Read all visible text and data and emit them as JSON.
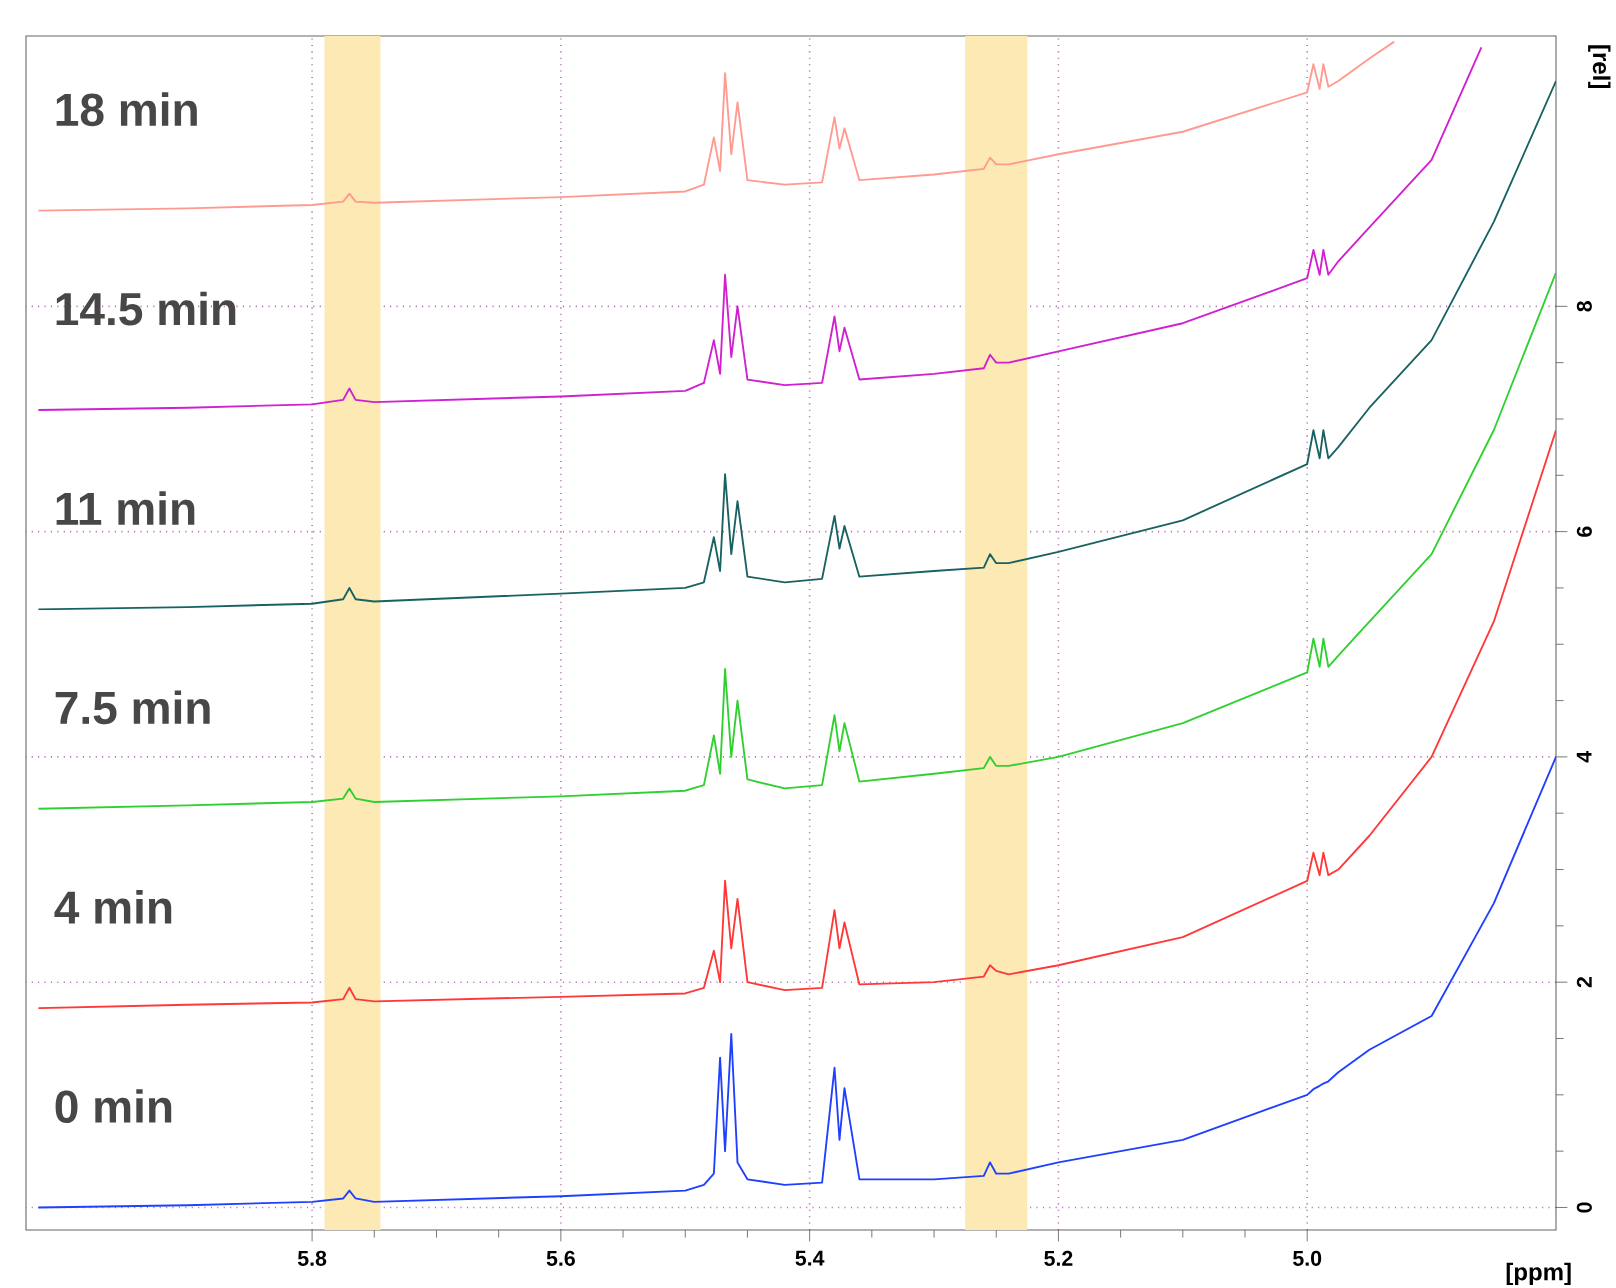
{
  "chart_data": {
    "type": "line",
    "xlabel": "[ppm]",
    "ylabel": "[rel]",
    "xlim": [
      6.03,
      4.8
    ],
    "ylim": [
      -0.2,
      10.4
    ],
    "xticks": [
      5.8,
      5.6,
      5.4,
      5.2,
      {
        "value": 5.0,
        "label": "5.0"
      }
    ],
    "yticks": [
      0,
      2,
      4,
      6,
      8
    ],
    "grid": true,
    "marker": "none",
    "line_style": "solid",
    "bands": [
      {
        "axis": "x",
        "from": 5.79,
        "to": 5.745,
        "color": "#fde9b3"
      },
      {
        "axis": "x",
        "from": 5.275,
        "to": 5.225,
        "color": "#fde9b3"
      }
    ],
    "x": [
      6.02,
      5.9,
      5.8,
      5.775,
      5.77,
      5.765,
      5.75,
      5.6,
      5.5,
      5.485,
      5.477,
      5.472,
      5.468,
      5.463,
      5.458,
      5.45,
      5.42,
      5.39,
      5.38,
      5.376,
      5.372,
      5.36,
      5.3,
      5.26,
      5.255,
      5.25,
      5.24,
      5.2,
      5.1,
      5.0,
      4.995,
      4.99,
      4.987,
      4.983,
      4.975,
      4.95,
      4.9,
      4.85,
      4.8
    ],
    "series": [
      {
        "name": "0 min",
        "color": "#2040ff",
        "values": [
          0.0,
          0.02,
          0.05,
          0.08,
          0.15,
          0.08,
          0.05,
          0.1,
          0.15,
          0.2,
          0.3,
          1.33,
          0.5,
          1.54,
          0.4,
          0.25,
          0.2,
          0.22,
          1.24,
          0.6,
          1.06,
          0.25,
          0.25,
          0.28,
          0.4,
          0.3,
          0.3,
          0.4,
          0.6,
          1.0,
          1.05,
          1.08,
          1.1,
          1.12,
          1.2,
          1.4,
          1.7,
          2.7,
          4.0
        ]
      },
      {
        "name": "4 min",
        "color": "#ff3838",
        "values": [
          1.77,
          1.8,
          1.82,
          1.85,
          1.95,
          1.85,
          1.83,
          1.87,
          1.9,
          1.95,
          2.28,
          2.0,
          2.9,
          2.3,
          2.74,
          2.0,
          1.93,
          1.95,
          2.64,
          2.3,
          2.53,
          1.98,
          2.0,
          2.05,
          2.15,
          2.1,
          2.07,
          2.15,
          2.4,
          2.9,
          3.15,
          2.95,
          3.15,
          2.95,
          3.0,
          3.3,
          4.0,
          5.2,
          6.9
        ]
      },
      {
        "name": "7.5 min",
        "color": "#30d030",
        "values": [
          3.54,
          3.57,
          3.6,
          3.63,
          3.72,
          3.63,
          3.6,
          3.65,
          3.7,
          3.75,
          4.19,
          3.85,
          4.78,
          4.0,
          4.5,
          3.8,
          3.72,
          3.75,
          4.37,
          4.05,
          4.3,
          3.78,
          3.85,
          3.9,
          4.0,
          3.92,
          3.92,
          4.0,
          4.3,
          4.75,
          5.05,
          4.8,
          5.05,
          4.8,
          4.9,
          5.2,
          5.8,
          6.9,
          8.3
        ]
      },
      {
        "name": "11 min",
        "color": "#1a6262",
        "values": [
          5.31,
          5.33,
          5.36,
          5.4,
          5.5,
          5.4,
          5.38,
          5.45,
          5.5,
          5.55,
          5.95,
          5.65,
          6.51,
          5.8,
          6.27,
          5.6,
          5.55,
          5.58,
          6.14,
          5.85,
          6.05,
          5.6,
          5.65,
          5.68,
          5.8,
          5.72,
          5.72,
          5.82,
          6.1,
          6.6,
          6.9,
          6.65,
          6.9,
          6.65,
          6.75,
          7.1,
          7.7,
          8.75,
          10.0
        ]
      },
      {
        "name": "14.5 min",
        "color": "#d020d0",
        "x": [
          6.02,
          5.9,
          5.8,
          5.775,
          5.77,
          5.765,
          5.75,
          5.6,
          5.5,
          5.485,
          5.477,
          5.472,
          5.468,
          5.463,
          5.458,
          5.45,
          5.42,
          5.39,
          5.38,
          5.376,
          5.372,
          5.36,
          5.3,
          5.26,
          5.255,
          5.25,
          5.24,
          5.2,
          5.1,
          5.0,
          4.995,
          4.99,
          4.987,
          4.983,
          4.975,
          4.95,
          4.9,
          4.86
        ],
        "values": [
          7.08,
          7.1,
          7.13,
          7.17,
          7.27,
          7.17,
          7.15,
          7.2,
          7.25,
          7.32,
          7.7,
          7.4,
          8.28,
          7.55,
          8.0,
          7.35,
          7.3,
          7.32,
          7.91,
          7.6,
          7.81,
          7.35,
          7.4,
          7.45,
          7.57,
          7.5,
          7.5,
          7.6,
          7.85,
          8.25,
          8.5,
          8.28,
          8.5,
          8.28,
          8.4,
          8.7,
          9.3,
          10.3
        ]
      },
      {
        "name": "18 min",
        "color": "#ff9a90",
        "x": [
          6.02,
          5.9,
          5.8,
          5.775,
          5.77,
          5.765,
          5.75,
          5.6,
          5.5,
          5.485,
          5.477,
          5.472,
          5.468,
          5.463,
          5.458,
          5.45,
          5.42,
          5.39,
          5.38,
          5.376,
          5.372,
          5.36,
          5.3,
          5.26,
          5.255,
          5.25,
          5.24,
          5.2,
          5.1,
          5.0,
          4.995,
          4.99,
          4.987,
          4.983,
          4.975,
          4.95,
          4.93
        ],
        "values": [
          8.85,
          8.87,
          8.9,
          8.93,
          9.0,
          8.93,
          8.92,
          8.97,
          9.02,
          9.08,
          9.5,
          9.2,
          10.07,
          9.35,
          9.81,
          9.12,
          9.08,
          9.1,
          9.68,
          9.4,
          9.58,
          9.12,
          9.17,
          9.22,
          9.32,
          9.26,
          9.26,
          9.35,
          9.55,
          9.9,
          10.15,
          9.93,
          10.15,
          9.95,
          10.0,
          10.2,
          10.35
        ]
      }
    ]
  }
}
